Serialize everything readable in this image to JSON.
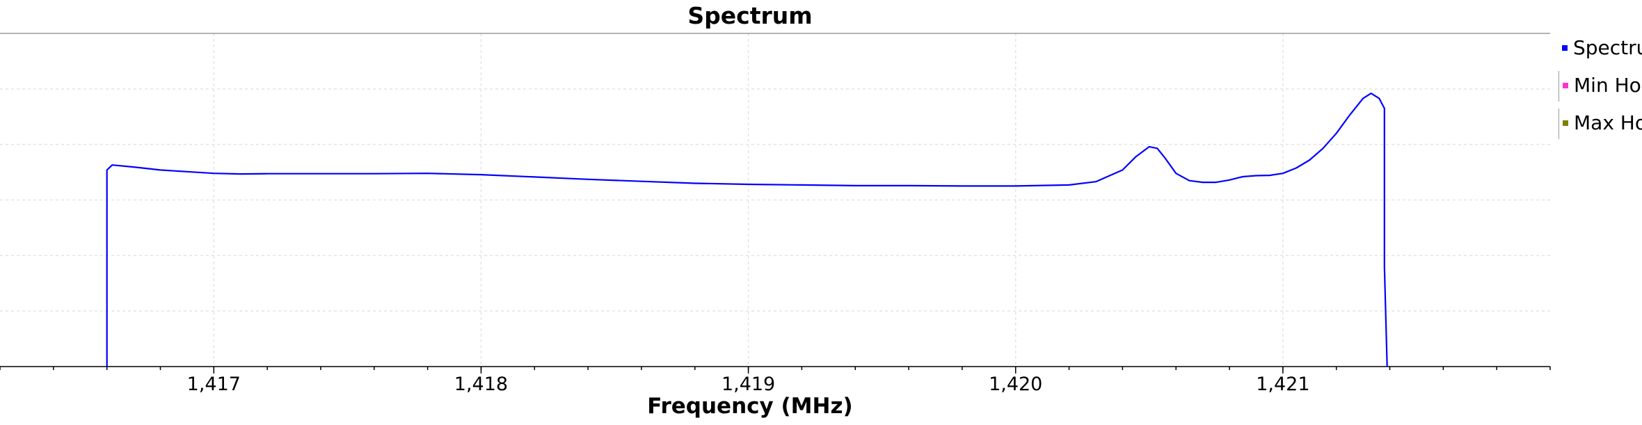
{
  "chart_data": {
    "type": "line",
    "title": "Spectrum",
    "xlabel": "Frequency (MHz)",
    "ylabel": "",
    "x_ticks": [
      {
        "value": 1417,
        "label": "1,417"
      },
      {
        "value": 1418,
        "label": "1,418"
      },
      {
        "value": 1419,
        "label": "1,419"
      },
      {
        "value": 1420,
        "label": "1,420"
      },
      {
        "value": 1421,
        "label": "1,421"
      }
    ],
    "xlim": [
      1416.2,
      1422.0
    ],
    "ylim": [
      0,
      100
    ],
    "grid": true,
    "legend_position": "right",
    "series": [
      {
        "name": "Spectrum",
        "color": "#0000ff",
        "x": [
          1416.6,
          1416.6,
          1416.62,
          1416.7,
          1416.8,
          1416.9,
          1417.0,
          1417.1,
          1417.2,
          1417.4,
          1417.6,
          1417.8,
          1418.0,
          1418.2,
          1418.4,
          1418.6,
          1418.8,
          1419.0,
          1419.2,
          1419.4,
          1419.6,
          1419.8,
          1420.0,
          1420.2,
          1420.3,
          1420.4,
          1420.45,
          1420.5,
          1420.53,
          1420.56,
          1420.6,
          1420.65,
          1420.7,
          1420.75,
          1420.8,
          1420.85,
          1420.9,
          1420.95,
          1421.0,
          1421.05,
          1421.1,
          1421.15,
          1421.2,
          1421.25,
          1421.3,
          1421.33,
          1421.36,
          1421.38,
          1421.38,
          1421.39
        ],
        "values": [
          0,
          59,
          60.5,
          59.9,
          59.0,
          58.5,
          58.0,
          57.8,
          57.9,
          57.9,
          57.9,
          58.0,
          57.6,
          56.9,
          56.2,
          55.6,
          55.0,
          54.7,
          54.5,
          54.3,
          54.3,
          54.2,
          54.2,
          54.5,
          55.5,
          59.0,
          63.0,
          66.0,
          65.5,
          62.5,
          58.0,
          55.8,
          55.3,
          55.3,
          56.0,
          57.0,
          57.3,
          57.4,
          58.0,
          59.6,
          62.0,
          65.5,
          70.0,
          75.5,
          80.5,
          82.0,
          80.5,
          77.5,
          30,
          0
        ]
      },
      {
        "name": "Min Hold",
        "color": "#ff33cc",
        "x": [],
        "values": []
      },
      {
        "name": "Max Hold",
        "color": "#808000",
        "x": [],
        "values": []
      }
    ]
  },
  "legend": [
    {
      "name": "Spectrum",
      "display": "Spectrum",
      "color": "#0000ff"
    },
    {
      "name": "Min Hold",
      "display": "Min Hold",
      "color": "#ff33cc"
    },
    {
      "name": "Max Hold",
      "display": "Max Hold",
      "color": "#808000"
    }
  ]
}
